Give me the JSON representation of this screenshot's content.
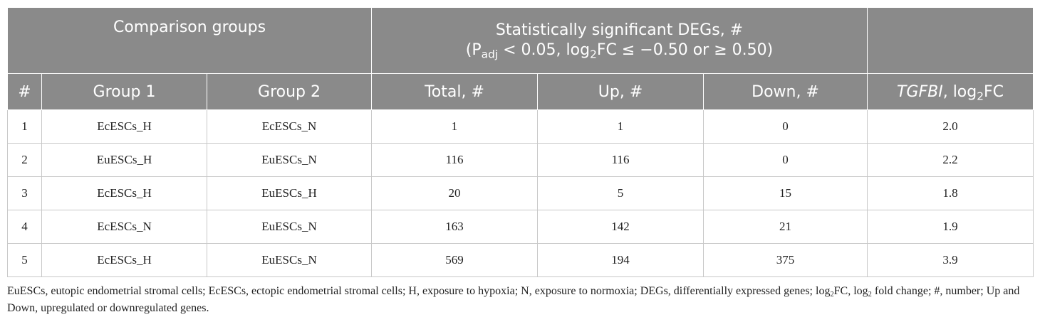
{
  "header": {
    "comparison_groups": "Comparison groups",
    "sig_line1": "Statistically significant DEGs, #",
    "sig_line2_open": "(P",
    "sig_line2_sub": "adj",
    "sig_line2_mid": " < 0.05, log",
    "sig_line2_sub2": "2",
    "sig_line2_end": "FC ≤ −0.50 or ≥ 0.50)",
    "col_num": "#",
    "col_group1": "Group 1",
    "col_group2": "Group 2",
    "col_total": "Total, #",
    "col_up": "Up, #",
    "col_down": "Down, #",
    "col_tgfbi_gene": "TGFBI",
    "col_tgfbi_rest": ", log",
    "col_tgfbi_sub": "2",
    "col_tgfbi_end": "FC"
  },
  "rows": [
    {
      "num": "1",
      "group1": "EcESCs_H",
      "group2": "EcESCs_N",
      "total": "1",
      "up": "1",
      "down": "0",
      "tgfbi": "2.0"
    },
    {
      "num": "2",
      "group1": "EuESCs_H",
      "group2": "EuESCs_N",
      "total": "116",
      "up": "116",
      "down": "0",
      "tgfbi": "2.2"
    },
    {
      "num": "3",
      "group1": "EcESCs_H",
      "group2": "EuESCs_H",
      "total": "20",
      "up": "5",
      "down": "15",
      "tgfbi": "1.8"
    },
    {
      "num": "4",
      "group1": "EcESCs_N",
      "group2": "EuESCs_N",
      "total": "163",
      "up": "142",
      "down": "21",
      "tgfbi": "1.9"
    },
    {
      "num": "5",
      "group1": "EcESCs_H",
      "group2": "EuESCs_N",
      "total": "569",
      "up": "194",
      "down": "375",
      "tgfbi": "3.9"
    }
  ],
  "footnote": {
    "part1": "EuESCs, eutopic endometrial stromal cells; EcESCs, ectopic endometrial stromal cells; H, exposure to hypoxia; N, exposure to normoxia; DEGs, differentially expressed genes; log",
    "sub1": "2",
    "part2": "FC, log",
    "sub2": "2",
    "part3": " fold change; #, number; Up and Down, upregulated or downregulated genes."
  }
}
